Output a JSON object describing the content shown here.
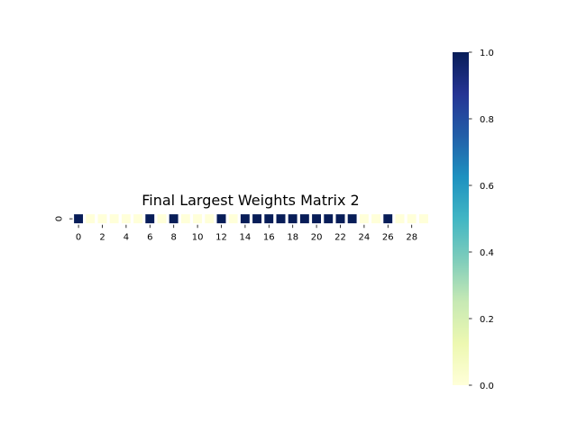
{
  "chart_data": {
    "type": "heatmap",
    "title": "Final Largest Weights Matrix 2",
    "rows": [
      "0"
    ],
    "columns": 30,
    "x_tick_labels": [
      "0",
      "2",
      "4",
      "6",
      "8",
      "10",
      "12",
      "14",
      "16",
      "18",
      "20",
      "22",
      "24",
      "26",
      "28"
    ],
    "x_tick_positions": [
      0,
      2,
      4,
      6,
      8,
      10,
      12,
      14,
      16,
      18,
      20,
      22,
      24,
      26,
      28
    ],
    "values": [
      [
        1,
        0,
        0,
        0,
        0,
        0,
        1,
        0,
        1,
        0,
        0,
        0,
        1,
        0,
        1,
        1,
        1,
        1,
        1,
        1,
        1,
        1,
        1,
        1,
        0,
        0,
        1,
        0,
        0,
        0
      ]
    ],
    "colorbar": {
      "range": [
        0.0,
        1.0
      ],
      "tick_labels": [
        "0.0",
        "0.2",
        "0.4",
        "0.6",
        "0.8",
        "1.0"
      ],
      "tick_values": [
        0.0,
        0.2,
        0.4,
        0.6,
        0.8,
        1.0
      ]
    },
    "colormap": {
      "name": "YlGnBu",
      "low_color": "#ffffd9",
      "high_color": "#081d58"
    },
    "grid_line_color": "#ffffff"
  }
}
